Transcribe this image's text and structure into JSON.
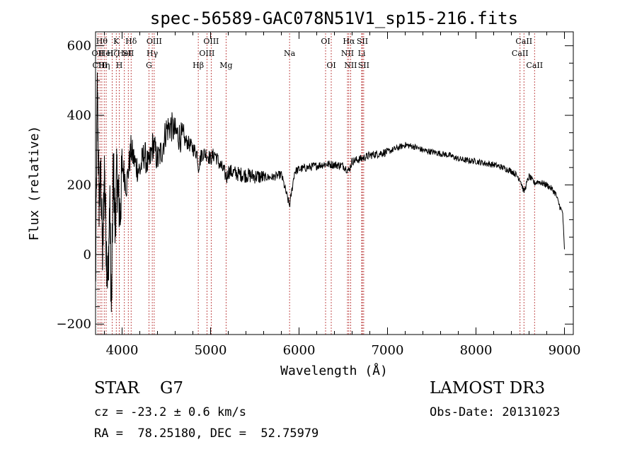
{
  "chart_data": {
    "type": "line",
    "title": "spec-56589-GAC078N51V1_sp15-216.fits",
    "xlabel": "Wavelength (Å)",
    "ylabel": "Flux (relative)",
    "xlim": [
      3700,
      9100
    ],
    "ylim": [
      -230,
      640
    ],
    "xticks": [
      4000,
      5000,
      6000,
      7000,
      8000,
      9000
    ],
    "yticks": [
      -200,
      0,
      200,
      400,
      600
    ],
    "grid": false,
    "series": [
      {
        "name": "flux",
        "color": "#000000",
        "x": [
          3700,
          3720,
          3740,
          3760,
          3780,
          3800,
          3820,
          3840,
          3860,
          3880,
          3900,
          3920,
          3940,
          3960,
          3980,
          4000,
          4050,
          4100,
          4150,
          4200,
          4250,
          4300,
          4350,
          4400,
          4450,
          4500,
          4550,
          4600,
          4650,
          4700,
          4750,
          4800,
          4850,
          4861,
          4900,
          4950,
          5000,
          5050,
          5100,
          5150,
          5183,
          5200,
          5300,
          5400,
          5500,
          5600,
          5700,
          5800,
          5893,
          5950,
          6000,
          6100,
          6200,
          6300,
          6400,
          6500,
          6563,
          6600,
          6700,
          6800,
          6900,
          7000,
          7100,
          7200,
          7300,
          7400,
          7500,
          7600,
          7700,
          7800,
          7900,
          8000,
          8100,
          8200,
          8300,
          8400,
          8450,
          8500,
          8542,
          8600,
          8662,
          8700,
          8750,
          8800,
          8850,
          8900,
          8930,
          8960,
          8980,
          9000
        ],
        "y": [
          -100,
          480,
          150,
          220,
          -20,
          250,
          30,
          -80,
          150,
          -180,
          270,
          80,
          230,
          160,
          110,
          260,
          200,
          300,
          260,
          240,
          290,
          250,
          320,
          270,
          300,
          360,
          370,
          350,
          340,
          330,
          320,
          305,
          290,
          250,
          290,
          290,
          275,
          290,
          260,
          240,
          220,
          240,
          232,
          228,
          225,
          222,
          222,
          230,
          140,
          238,
          245,
          250,
          255,
          260,
          258,
          255,
          240,
          268,
          275,
          285,
          290,
          295,
          305,
          315,
          310,
          300,
          295,
          290,
          285,
          275,
          270,
          268,
          262,
          258,
          250,
          240,
          230,
          215,
          180,
          225,
          205,
          210,
          205,
          200,
          190,
          175,
          150,
          130,
          120,
          10
        ]
      }
    ],
    "lines": [
      {
        "wl": 3727,
        "label": "OII",
        "row": 1
      },
      {
        "wl": 3750,
        "label": "CIII",
        "row": 2
      },
      {
        "wl": 3771,
        "label": "Hθ",
        "row": 0
      },
      {
        "wl": 3798,
        "label": "Hη",
        "row": 2
      },
      {
        "wl": 3820,
        "label": "HeI",
        "row": 1
      },
      {
        "wl": 3889,
        "label": "Hζ",
        "row": 1
      },
      {
        "wl": 3934,
        "label": "K",
        "row": 0
      },
      {
        "wl": 3968,
        "label": "H",
        "row": 2
      },
      {
        "wl": 4026,
        "label": "HeI",
        "row": 1
      },
      {
        "wl": 4070,
        "label": "SII",
        "row": 1
      },
      {
        "wl": 4102,
        "label": "Hδ",
        "row": 0
      },
      {
        "wl": 4304,
        "label": "G",
        "row": 2
      },
      {
        "wl": 4341,
        "label": "Hγ",
        "row": 1
      },
      {
        "wl": 4363,
        "label": "OIII",
        "row": 0
      },
      {
        "wl": 4861,
        "label": "Hβ",
        "row": 2
      },
      {
        "wl": 4959,
        "label": "OIII",
        "row": 1
      },
      {
        "wl": 5007,
        "label": "OIII",
        "row": 0
      },
      {
        "wl": 5175,
        "label": "Mg",
        "row": 2
      },
      {
        "wl": 5893,
        "label": "Na",
        "row": 1
      },
      {
        "wl": 6300,
        "label": "OI",
        "row": 0
      },
      {
        "wl": 6364,
        "label": "OI",
        "row": 2
      },
      {
        "wl": 6548,
        "label": "NII",
        "row": 1
      },
      {
        "wl": 6563,
        "label": "Hα",
        "row": 0
      },
      {
        "wl": 6583,
        "label": "NII",
        "row": 2
      },
      {
        "wl": 6708,
        "label": "Li",
        "row": 1
      },
      {
        "wl": 6716,
        "label": "SII",
        "row": 0
      },
      {
        "wl": 6731,
        "label": "SII",
        "row": 2
      },
      {
        "wl": 8498,
        "label": "CaII",
        "row": 1
      },
      {
        "wl": 8542,
        "label": "CaII",
        "row": 0
      },
      {
        "wl": 8662,
        "label": "CaII",
        "row": 2
      }
    ]
  },
  "info": {
    "star_class": "STAR    G7",
    "cz": "cz = -23.2 ± 0.6 km/s",
    "radec": "RA =  78.25180, DEC =  52.75979",
    "survey": "LAMOST DR3",
    "obs_date": "Obs-Date: 20131023"
  },
  "colors": {
    "line_marker": "#b22222",
    "flux": "#000000",
    "axes": "#000000"
  }
}
